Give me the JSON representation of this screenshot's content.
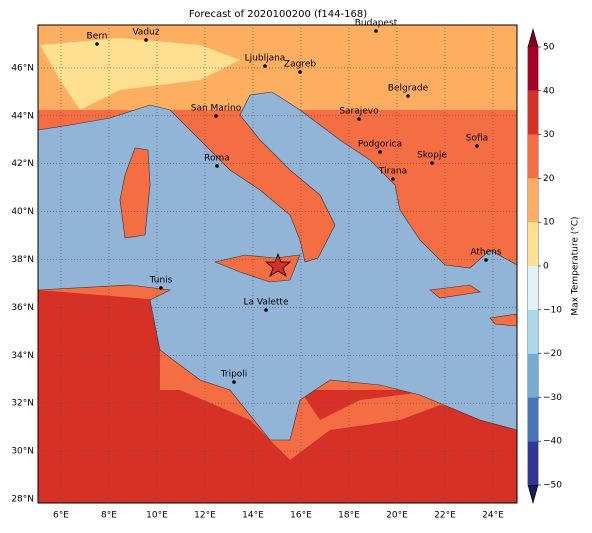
{
  "title": "Forecast of 2020100200 (f144-168)",
  "lon_ticks": [
    "6°E",
    "8°E",
    "10°E",
    "12°E",
    "14°E",
    "16°E",
    "18°E",
    "20°E",
    "22°E",
    "24°E"
  ],
  "lat_ticks": [
    "28°N",
    "30°N",
    "32°N",
    "34°N",
    "36°N",
    "38°N",
    "40°N",
    "42°N",
    "44°N",
    "46°N"
  ],
  "cities": [
    "Bern",
    "Vaduz",
    "Budapest",
    "Ljubljana",
    "Zagreb",
    "Belgrade",
    "Sarajevo",
    "San Marino",
    "Podgorica",
    "Sofia",
    "Skopje",
    "Roma",
    "Tirana",
    "Athens",
    "Tunis",
    "La Valette",
    "Tripoli"
  ],
  "colorbar": {
    "label": "Max Temperature (°C)",
    "ticks": [
      {
        "value": -50,
        "label": "−50"
      },
      {
        "value": -40,
        "label": "−40"
      },
      {
        "value": -30,
        "label": "−30"
      },
      {
        "value": -20,
        "label": "−20"
      },
      {
        "value": -10,
        "label": "−10"
      },
      0,
      10,
      20,
      30,
      40,
      50
    ]
  }
}
